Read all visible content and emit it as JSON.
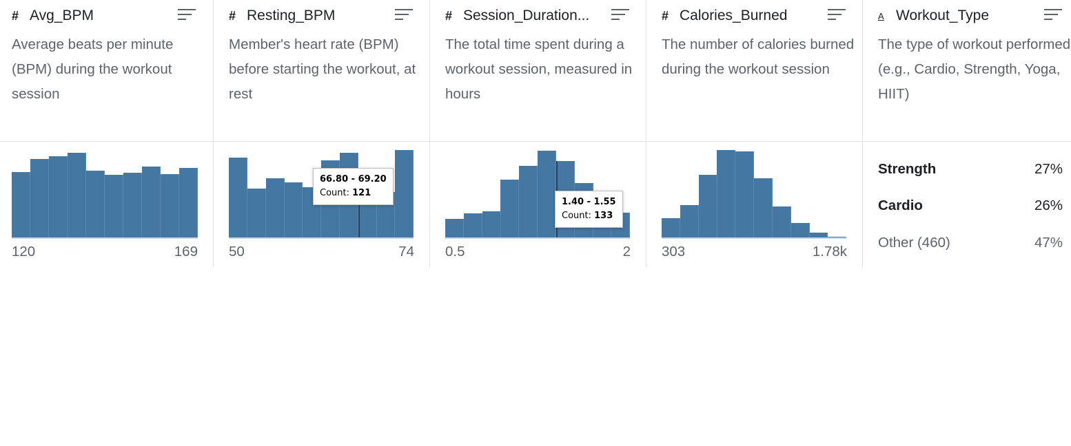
{
  "columns": [
    {
      "type_icon": "#",
      "name": "Avg_BPM",
      "description": "Average beats per minute (BPM) during the workout session",
      "chart_data": {
        "type": "bar",
        "values": [
          96,
          114,
          118,
          123,
          98,
          92,
          95,
          103,
          93,
          101
        ],
        "ylim": [
          0,
          130
        ]
      },
      "range_min": "120",
      "range_max": "169"
    },
    {
      "type_icon": "#",
      "name": "Resting_BPM",
      "description": "Member's heart rate (BPM) before starting the workout, at rest",
      "chart_data": {
        "type": "bar",
        "values": [
          143,
          89,
          107,
          100,
          91,
          138,
          152,
          121,
          83,
          156
        ],
        "ylim": [
          0,
          160
        ]
      },
      "range_min": "50",
      "range_max": "74",
      "tooltip": {
        "range": "66.80 - 69.20",
        "count_label": "Count:",
        "count": "121"
      }
    },
    {
      "type_icon": "#",
      "name": "Session_Duration...",
      "description": "The total time spent during a workout session, measured in hours",
      "chart_data": {
        "type": "bar",
        "values": [
          34,
          43,
          47,
          101,
          124,
          150,
          133,
          95,
          63,
          45
        ],
        "ylim": [
          0,
          155
        ]
      },
      "range_min": "0.5",
      "range_max": "2",
      "tooltip": {
        "range": "1.40 - 1.55",
        "count_label": "Count:",
        "count": "133"
      }
    },
    {
      "type_icon": "#",
      "name": "Calories_Burned",
      "description": "The number of calories burned during the workout session",
      "chart_data": {
        "type": "bar",
        "values": [
          36,
          58,
          110,
          153,
          150,
          104,
          55,
          27,
          11,
          3
        ],
        "ylim": [
          0,
          156
        ]
      },
      "range_min": "303",
      "range_max": "1.78k"
    },
    {
      "type_icon": "A",
      "name": "Workout_Type",
      "description": "The type of workout performed (e.g., Cardio, Strength, Yoga, HIIT)",
      "categories": [
        {
          "label": "Strength",
          "pct": "27%",
          "bold": true
        },
        {
          "label": "Cardio",
          "pct": "26%",
          "bold": true
        },
        {
          "label": "Other (460)",
          "pct": "47%",
          "bold": false
        }
      ]
    }
  ],
  "colors": {
    "bar": "#4577a3",
    "text": "#202124",
    "muted": "#5f6368"
  },
  "icons": {
    "sort": "sort-icon",
    "numeric": "numeric-type-icon",
    "text": "text-type-icon"
  }
}
